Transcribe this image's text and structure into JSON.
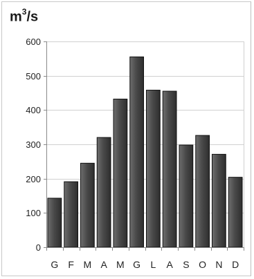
{
  "chart_data": {
    "type": "bar",
    "ylabel_parts": {
      "base": "m",
      "exponent": "3",
      "suffix": "/s"
    },
    "xlabel": "",
    "categories": [
      "G",
      "F",
      "M",
      "A",
      "M",
      "G",
      "L",
      "A",
      "S",
      "O",
      "N",
      "D"
    ],
    "values": [
      143,
      191,
      245,
      320,
      432,
      555,
      458,
      455,
      298,
      326,
      271,
      204
    ],
    "ylim": [
      0,
      600
    ],
    "yticks": [
      "0",
      "100",
      "200",
      "300",
      "400",
      "500",
      "600"
    ],
    "grid": true,
    "legend": "none",
    "bar_color_light": "#6e6e6e",
    "bar_color_dark": "#2e2e2e",
    "bar_edge_color": "#111111",
    "grid_color": "#d0d0d0",
    "axis_color": "#888888"
  }
}
